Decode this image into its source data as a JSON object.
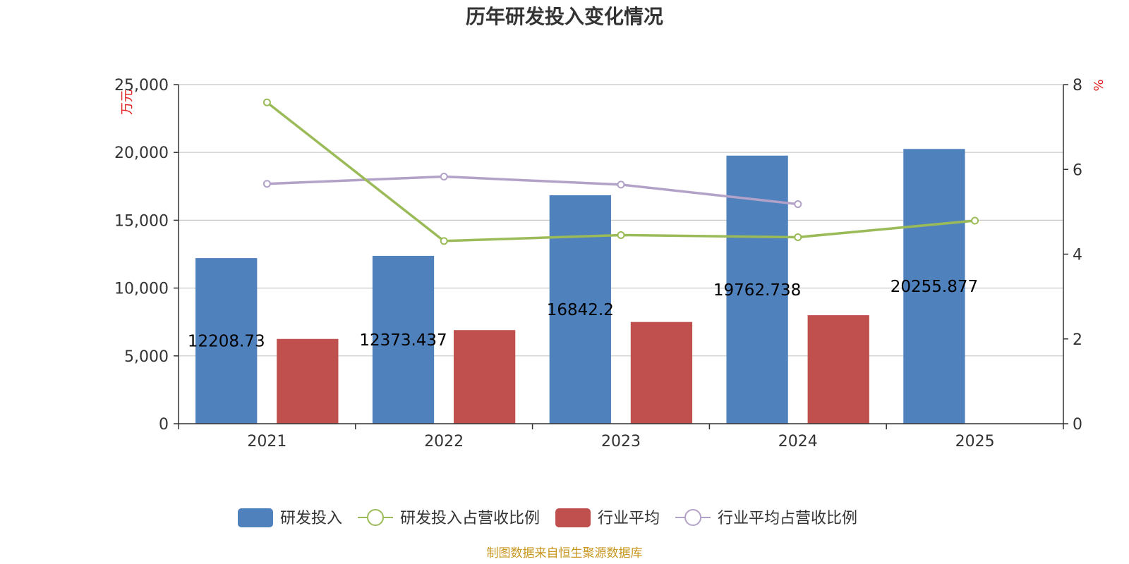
{
  "title": "历年研发投入变化情况",
  "footer": "制图数据来自恒生聚源数据库",
  "y_left_unit": "万元",
  "y_right_unit": "%",
  "colors": {
    "rd_bar": "#4f81bd",
    "ind_bar": "#c0504d",
    "rd_line": "#9bbb59",
    "ind_line": "#b3a2c7",
    "grid": "#c8c8c8",
    "axis": "#333333",
    "unit": "#e02020",
    "footer": "#c8961e"
  },
  "chart_data": {
    "type": "bar",
    "title": "历年研发投入变化情况",
    "categories": [
      "2021",
      "2022",
      "2023",
      "2024",
      "2025"
    ],
    "y_left": {
      "unit": "万元",
      "range": [
        0,
        25000
      ],
      "ticks": [
        0,
        5000,
        10000,
        15000,
        20000,
        25000
      ],
      "tick_labels": [
        "0",
        "5,000",
        "10,000",
        "15,000",
        "20,000",
        "25,000"
      ]
    },
    "y_right": {
      "unit": "%",
      "range": [
        0,
        8
      ],
      "ticks": [
        0,
        2,
        4,
        6,
        8
      ],
      "tick_labels": [
        "0",
        "2",
        "4",
        "6",
        "8"
      ]
    },
    "grid": true,
    "legend_position": "bottom",
    "series": [
      {
        "name": "研发投入",
        "type": "bar",
        "axis": "left",
        "values": [
          12208.73,
          12373.437,
          16842.2,
          19762.738,
          20255.877
        ],
        "labels": [
          "12208.73",
          "12373.437",
          "16842.2",
          "19762.738",
          "20255.877"
        ]
      },
      {
        "name": "研发投入占营收比例",
        "type": "line",
        "axis": "right",
        "values": [
          7.58,
          4.31,
          4.45,
          4.4,
          4.79
        ]
      },
      {
        "name": "行业平均",
        "type": "bar",
        "axis": "left",
        "values": [
          6250,
          6900,
          7500,
          8000,
          null
        ]
      },
      {
        "name": "行业平均占营收比例",
        "type": "line",
        "axis": "right",
        "values": [
          5.66,
          5.83,
          5.64,
          5.18,
          null
        ]
      }
    ]
  }
}
